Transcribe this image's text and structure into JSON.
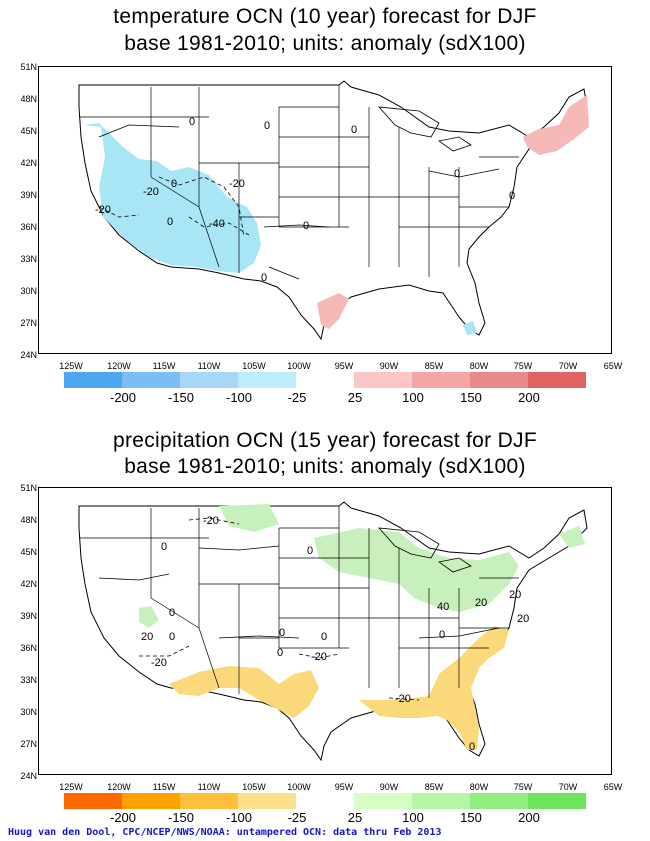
{
  "panels": [
    {
      "title_line1": "temperature OCN (10 year) forecast for DJF",
      "title_line2": "base 1981-2010; units: anomaly (sdX100)",
      "lat_labels": [
        "51N",
        "48N",
        "45N",
        "42N",
        "39N",
        "36N",
        "33N",
        "30N",
        "27N",
        "24N"
      ],
      "lon_labels": [
        "125W",
        "120W",
        "115W",
        "110W",
        "105W",
        "100W",
        "95W",
        "90W",
        "85W",
        "80W",
        "75W",
        "70W",
        "65W"
      ],
      "contour_labels": [
        "0",
        "0",
        "0",
        "0",
        "-20",
        "-20",
        "-20",
        "-40",
        "0",
        "0",
        "0",
        "0",
        "0"
      ],
      "legend": {
        "negative_colors": [
          "#4da6f0",
          "#7dbdf5",
          "#a8d8f8",
          "#bfecfb"
        ],
        "positive_colors": [
          "#fdc6c6",
          "#f4a6a6",
          "#e98a8a",
          "#e06464"
        ],
        "negative_labels": [
          "-200",
          "-150",
          "-100",
          "-25"
        ],
        "positive_labels": [
          "25",
          "100",
          "150",
          "200"
        ]
      }
    },
    {
      "title_line1": "precipitation OCN (15 year) forecast for DJF",
      "title_line2": "base 1981-2010; units: anomaly (sdX100)",
      "lat_labels": [
        "51N",
        "48N",
        "45N",
        "42N",
        "39N",
        "36N",
        "33N",
        "30N",
        "27N",
        "24N"
      ],
      "lon_labels": [
        "125W",
        "120W",
        "115W",
        "110W",
        "105W",
        "100W",
        "95W",
        "90W",
        "85W",
        "80W",
        "75W",
        "70W",
        "65W"
      ],
      "contour_labels": [
        "-20",
        "0",
        "0",
        "0",
        "20",
        "0",
        "-20",
        "0",
        "0",
        "-20",
        "0",
        "20",
        "20",
        "40",
        "20",
        "0",
        "0",
        "-20"
      ],
      "legend": {
        "negative_colors": [
          "#ff6a00",
          "#ffa200",
          "#ffbf3a",
          "#ffe08a"
        ],
        "positive_colors": [
          "#d6fdc6",
          "#b4f5a6",
          "#90ee80",
          "#6ee45a"
        ],
        "negative_labels": [
          "-200",
          "-150",
          "-100",
          "-25"
        ],
        "positive_labels": [
          "25",
          "100",
          "150",
          "200"
        ]
      }
    }
  ],
  "credit": "Huug van den Dool, CPC/NCEP/NWS/NOAA: untampered OCN: data thru Feb 2013",
  "colors": {
    "temp_negative_fill": "#a8e6f5",
    "temp_positive_fill": "#f7b8b8",
    "precip_negative_fill": "#fbd97a",
    "precip_positive_fill": "#c8f0bc"
  }
}
